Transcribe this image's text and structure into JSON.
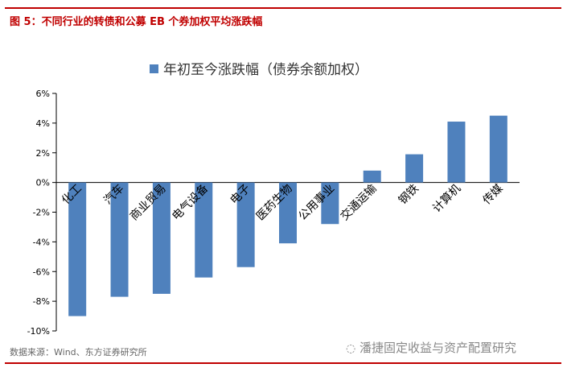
{
  "figure_title": "图 5：不同行业的转债和公募 EB 个券加权平均涨跌幅",
  "source": "数据来源：Wind、东方证券研究所",
  "watermark": "潘捷固定收益与资产配置研究",
  "colors": {
    "bar": "#4f81bd",
    "accent": "#c00000"
  },
  "chart_data": {
    "type": "bar",
    "legend": [
      "年初至今涨跌幅（债券余额加权）"
    ],
    "legend_position": "top-center",
    "categories": [
      "化工",
      "汽车",
      "商业贸易",
      "电气设备",
      "电子",
      "医药生物",
      "公用事业",
      "交通运输",
      "钢铁",
      "计算机",
      "传媒"
    ],
    "values": [
      -9.0,
      -7.7,
      -7.5,
      -6.4,
      -5.7,
      -4.1,
      -2.8,
      0.8,
      1.9,
      4.1,
      4.5
    ],
    "ylim": [
      -10,
      6
    ],
    "yticks": [
      "6%",
      "4%",
      "2%",
      "0%",
      "-2%",
      "-4%",
      "-6%",
      "-8%",
      "-10%"
    ],
    "ytick_values": [
      6,
      4,
      2,
      0,
      -2,
      -4,
      -6,
      -8,
      -10
    ],
    "grid": false
  }
}
